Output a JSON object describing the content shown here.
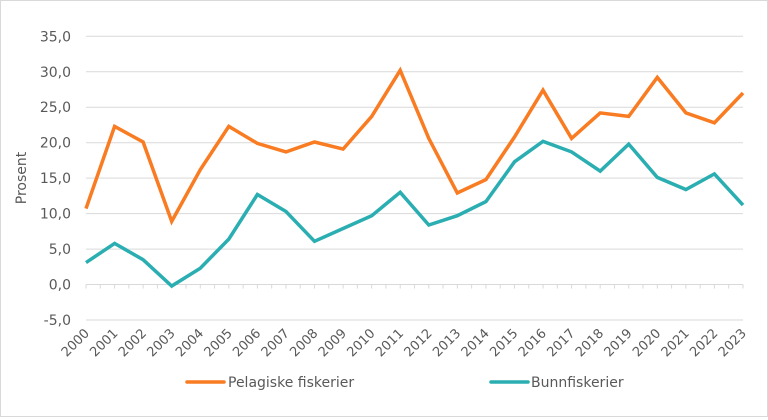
{
  "chart_data": {
    "type": "line",
    "title": "",
    "xlabel": "",
    "ylabel": "Prosent",
    "ylim": [
      -5,
      35
    ],
    "yticks": [
      35,
      30,
      25,
      20,
      15,
      10,
      5,
      0,
      -5
    ],
    "ytick_labels": [
      "35,0",
      "30,0",
      "25,0",
      "20,0",
      "15,0",
      "10,0",
      "5,0",
      "0,0",
      "-5,0"
    ],
    "grid": true,
    "legend_position": "bottom",
    "categories": [
      "2000",
      "2001",
      "2002",
      "2003",
      "2004",
      "2005",
      "2006",
      "2007",
      "2008",
      "2009",
      "2010",
      "2011",
      "2012",
      "2013",
      "2014",
      "2015",
      "2016",
      "2017",
      "2018",
      "2019",
      "2020",
      "2021",
      "2022",
      "2023"
    ],
    "series": [
      {
        "name": "Pelagiske fiskerier",
        "color": "#F97B22",
        "values": [
          10.7,
          22.3,
          20.1,
          8.9,
          16.2,
          22.3,
          19.9,
          18.7,
          20.1,
          19.1,
          23.7,
          30.2,
          20.6,
          12.9,
          14.8,
          20.8,
          27.4,
          20.6,
          24.2,
          23.7,
          29.2,
          24.2,
          22.8,
          27.0
        ]
      },
      {
        "name": "Bunnfiskerier",
        "color": "#2AAEB2",
        "values": [
          3.1,
          5.8,
          3.5,
          -0.2,
          2.3,
          6.4,
          12.7,
          10.3,
          6.1,
          7.9,
          9.7,
          13.0,
          8.4,
          9.7,
          11.7,
          17.3,
          20.2,
          18.7,
          16.0,
          19.8,
          15.1,
          13.4,
          15.6,
          11.2
        ]
      }
    ]
  },
  "legend": {
    "items": [
      {
        "label": "Pelagiske fiskerier",
        "color": "#F97B22"
      },
      {
        "label": "Bunnfiskerier",
        "color": "#2AAEB2"
      }
    ]
  },
  "axis": {
    "y_title": "Prosent"
  }
}
